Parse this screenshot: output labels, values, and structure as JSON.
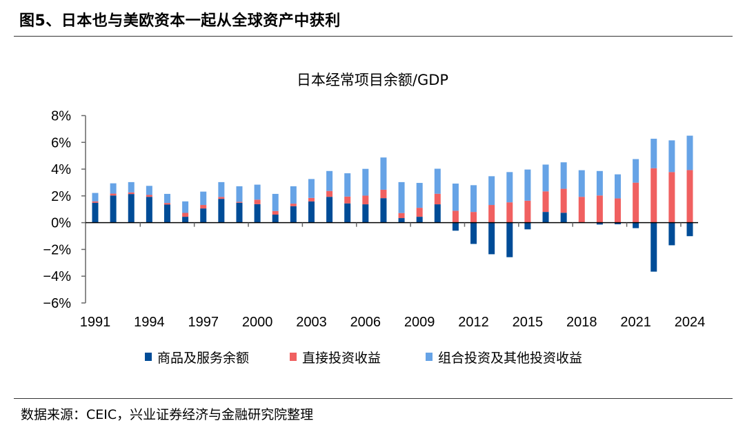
{
  "figure_title": "图5、日本也与美欧资本一起从全球资产中获利",
  "source": "数据来源：CEIC，兴业证券经济与金融研究院整理",
  "colors": {
    "goods_services": "#004C97",
    "fdi_income": "#F06060",
    "portfolio_income": "#66A3E6"
  },
  "chart_data": {
    "type": "bar",
    "stacked": true,
    "title": "日本经常项目余额/GDP",
    "xlabel": "",
    "ylabel": "",
    "ylim": [
      -6,
      8
    ],
    "yticks": [
      "8%",
      "6%",
      "4%",
      "2%",
      "0%",
      "−2%",
      "−4%",
      "−6%"
    ],
    "ytick_values": [
      8,
      6,
      4,
      2,
      0,
      -2,
      -4,
      -6
    ],
    "xtick_labels": [
      "1991",
      "1994",
      "1997",
      "2000",
      "2003",
      "2006",
      "2009",
      "2012",
      "2015",
      "2018",
      "2021",
      "2024"
    ],
    "grid": false,
    "legend_position": "bottom",
    "categories": [
      "1991",
      "1992",
      "1993",
      "1994",
      "1995",
      "1996",
      "1997",
      "1998",
      "1999",
      "2000",
      "2001",
      "2002",
      "2003",
      "2004",
      "2005",
      "2006",
      "2007",
      "2008",
      "2009",
      "2010",
      "2011",
      "2012",
      "2013",
      "2014",
      "2015",
      "2016",
      "2017",
      "2018",
      "2019",
      "2020",
      "2021",
      "2022",
      "2023",
      "2024"
    ],
    "series": [
      {
        "name": "商品及服务余额",
        "values": [
          1.49,
          2.03,
          2.14,
          1.93,
          1.35,
          0.44,
          1.06,
          1.78,
          1.49,
          1.38,
          0.6,
          1.23,
          1.59,
          1.93,
          1.44,
          1.37,
          1.83,
          0.34,
          0.44,
          1.37,
          -0.6,
          -1.59,
          -2.36,
          -2.58,
          -0.5,
          0.8,
          0.74,
          0.02,
          -0.14,
          -0.12,
          -0.41,
          -3.66,
          -1.69,
          -1.01
        ]
      },
      {
        "name": "直接投资收益",
        "values": [
          0.1,
          0.14,
          0.12,
          0.14,
          0.12,
          0.29,
          0.26,
          0.14,
          0.07,
          0.34,
          0.27,
          0.19,
          0.26,
          0.44,
          0.51,
          0.65,
          0.63,
          0.38,
          0.67,
          0.79,
          0.89,
          0.8,
          1.32,
          1.52,
          1.64,
          1.54,
          1.79,
          1.91,
          2.03,
          1.81,
          2.99,
          4.07,
          3.78,
          3.93
        ]
      },
      {
        "name": "组合投资及其他投资收益",
        "values": [
          0.63,
          0.77,
          0.77,
          0.68,
          0.68,
          0.86,
          1.0,
          1.11,
          1.16,
          1.12,
          1.28,
          1.3,
          1.41,
          1.49,
          1.74,
          2.0,
          2.41,
          2.31,
          1.86,
          1.87,
          2.03,
          2.0,
          2.15,
          2.26,
          2.33,
          2.0,
          1.98,
          1.99,
          1.83,
          1.8,
          1.76,
          2.2,
          2.37,
          2.57
        ]
      }
    ]
  }
}
